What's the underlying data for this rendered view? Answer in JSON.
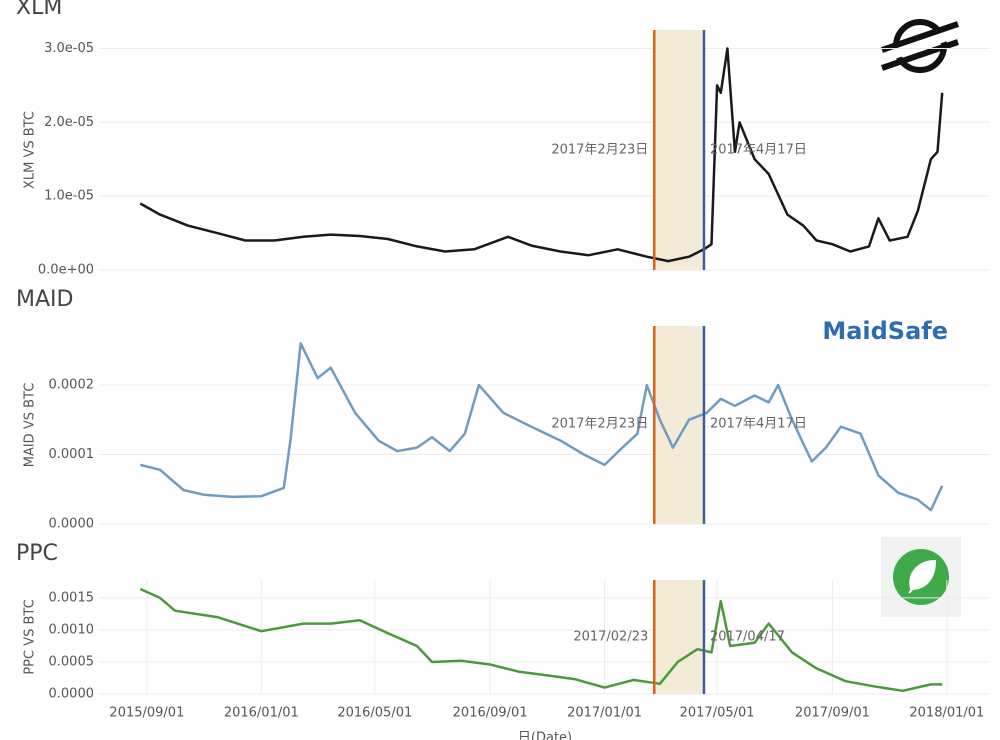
{
  "chart_data": [
    {
      "type": "line",
      "title": "XLM",
      "ylabel": "XLM VS BTC",
      "color": "#1a1a1a",
      "x": [
        "2015/08/25",
        "2015/09/15",
        "2015/10/15",
        "2015/11/15",
        "2015/12/15",
        "2016/01/15",
        "2016/02/15",
        "2016/03/15",
        "2016/04/15",
        "2016/05/15",
        "2016/06/15",
        "2016/07/15",
        "2016/08/15",
        "2016/09/20",
        "2016/10/15",
        "2016/11/15",
        "2016/12/15",
        "2017/01/15",
        "2017/02/15",
        "2017/03/10",
        "2017/04/01",
        "2017/04/17",
        "2017/04/25",
        "2017/05/01",
        "2017/05/05",
        "2017/05/12",
        "2017/05/20",
        "2017/05/25",
        "2017/06/10",
        "2017/06/25",
        "2017/07/15",
        "2017/08/01",
        "2017/08/15",
        "2017/09/01",
        "2017/09/20",
        "2017/10/10",
        "2017/10/20",
        "2017/11/01",
        "2017/11/20",
        "2017/12/01",
        "2017/12/15",
        "2017/12/22",
        "2017/12/27"
      ],
      "values": [
        9e-06,
        7.5e-06,
        6e-06,
        5e-06,
        4e-06,
        4e-06,
        4.5e-06,
        4.8e-06,
        4.6e-06,
        4.2e-06,
        3.2e-06,
        2.5e-06,
        2.8e-06,
        4.5e-06,
        3.3e-06,
        2.5e-06,
        2e-06,
        2.8e-06,
        1.8e-06,
        1.2e-06,
        1.8e-06,
        2.8e-06,
        3.5e-06,
        2.5e-05,
        2.4e-05,
        3e-05,
        1.6e-05,
        2e-05,
        1.5e-05,
        1.3e-05,
        7.5e-06,
        6e-06,
        4e-06,
        3.5e-06,
        2.5e-06,
        3.2e-06,
        7e-06,
        4e-06,
        4.5e-06,
        8e-06,
        1.5e-05,
        1.6e-05,
        2.4e-05
      ],
      "xlim": [
        "2015/07/13",
        "2018/02/16"
      ],
      "ylim": [
        0,
        3.25e-05
      ],
      "yticks": [
        {
          "value": 0,
          "label": "0.0e+00"
        },
        {
          "value": 1e-05,
          "label": "1.0e-05"
        },
        {
          "value": 2e-05,
          "label": "2.0e-05"
        },
        {
          "value": 3e-05,
          "label": "3.0e-05"
        }
      ],
      "grid": true,
      "annotations": [
        {
          "date": "2017/02/23",
          "label": "2017年2月23日",
          "color": "#e0601c"
        },
        {
          "date": "2017/04/17",
          "label": "2017年4月17日",
          "color": "#3a5ca0"
        }
      ],
      "band_color": "#f3ead8"
    },
    {
      "type": "line",
      "title": "MAID",
      "ylabel": "MAID VS BTC",
      "color": "#6f9cc2",
      "logo": "MaidSafe",
      "x": [
        "2015/08/25",
        "2015/09/15",
        "2015/10/10",
        "2015/11/01",
        "2015/12/01",
        "2016/01/01",
        "2016/01/25",
        "2016/02/01",
        "2016/02/12",
        "2016/03/01",
        "2016/03/15",
        "2016/04/10",
        "2016/05/05",
        "2016/05/25",
        "2016/06/15",
        "2016/07/01",
        "2016/07/20",
        "2016/08/05",
        "2016/08/20",
        "2016/09/15",
        "2016/10/15",
        "2016/11/15",
        "2016/12/10",
        "2017/01/01",
        "2017/01/20",
        "2017/02/05",
        "2017/02/15",
        "2017/03/01",
        "2017/03/15",
        "2017/04/01",
        "2017/04/20",
        "2017/05/05",
        "2017/05/20",
        "2017/06/10",
        "2017/06/25",
        "2017/07/05",
        "2017/07/20",
        "2017/08/10",
        "2017/08/25",
        "2017/09/10",
        "2017/10/01",
        "2017/10/20",
        "2017/11/10",
        "2017/12/01",
        "2017/12/15",
        "2017/12/27"
      ],
      "values": [
        8.5e-05,
        7.8e-05,
        4.9e-05,
        4.2e-05,
        3.9e-05,
        4e-05,
        5.2e-05,
        0.00012,
        0.00026,
        0.00021,
        0.000225,
        0.00016,
        0.00012,
        0.000105,
        0.00011,
        0.000125,
        0.000105,
        0.00013,
        0.0002,
        0.00016,
        0.00014,
        0.00012,
        0.0001,
        8.5e-05,
        0.00011,
        0.00013,
        0.0002,
        0.00015,
        0.00011,
        0.00015,
        0.00016,
        0.00018,
        0.00017,
        0.000185,
        0.000175,
        0.0002,
        0.00015,
        9e-05,
        0.00011,
        0.00014,
        0.00013,
        7e-05,
        4.5e-05,
        3.5e-05,
        2e-05,
        5.5e-05
      ],
      "xlim": [
        "2015/07/13",
        "2018/02/16"
      ],
      "ylim": [
        0,
        0.000285
      ],
      "yticks": [
        {
          "value": 0,
          "label": "0.0000"
        },
        0.0001,
        0.0002
      ],
      "grid": true,
      "annotations": [
        {
          "date": "2017/02/23",
          "label": "2017年2月23日",
          "color": "#e0601c"
        },
        {
          "date": "2017/04/17",
          "label": "2017年4月17日",
          "color": "#3a5ca0"
        }
      ],
      "band_color": "#f3ead8"
    },
    {
      "type": "line",
      "title": "PPC",
      "ylabel": "PPC VS BTC",
      "xlabel": "日(Date)",
      "color": "#4a9a3c",
      "x": [
        "2015/08/25",
        "2015/09/15",
        "2015/10/01",
        "2015/11/15",
        "2016/01/01",
        "2016/02/15",
        "2016/03/15",
        "2016/04/15",
        "2016/05/15",
        "2016/06/15",
        "2016/07/01",
        "2016/08/01",
        "2016/09/01",
        "2016/10/01",
        "2016/11/01",
        "2016/12/01",
        "2017/01/01",
        "2017/02/01",
        "2017/03/01",
        "2017/03/20",
        "2017/04/10",
        "2017/04/25",
        "2017/05/05",
        "2017/05/15",
        "2017/06/10",
        "2017/06/25",
        "2017/07/20",
        "2017/08/15",
        "2017/09/15",
        "2017/10/15",
        "2017/11/15",
        "2017/12/15",
        "2017/12/27"
      ],
      "values": [
        0.00164,
        0.0015,
        0.0013,
        0.0012,
        0.00098,
        0.0011,
        0.0011,
        0.00115,
        0.00095,
        0.00075,
        0.0005,
        0.00052,
        0.00046,
        0.00035,
        0.00029,
        0.00023,
        0.0001,
        0.00022,
        0.00016,
        0.0005,
        0.0007,
        0.00065,
        0.00145,
        0.00075,
        0.0008,
        0.0011,
        0.00065,
        0.0004,
        0.0002,
        0.00012,
        5e-05,
        0.00015,
        0.00015
      ],
      "xlim": [
        "2015/07/13",
        "2018/02/16"
      ],
      "ylim": [
        0,
        0.00178
      ],
      "yticks": [
        {
          "value": 0,
          "label": "0.0000"
        },
        {
          "value": 0.0005,
          "label": "0.0005"
        },
        {
          "value": 0.001,
          "label": "0.0010"
        },
        0.0015
      ],
      "xticks": [
        "2015/09/01",
        "2016/01/01",
        "2016/05/01",
        "2016/09/01",
        "2017/01/01",
        "2017/05/01",
        "2017/09/01",
        "2018/01/01"
      ],
      "grid": true,
      "annotations": [
        {
          "date": "2017/02/23",
          "label": "2017/02/23",
          "color": "#e0601c"
        },
        {
          "date": "2017/04/17",
          "label": "2017/04/17",
          "color": "#3a5ca0"
        }
      ],
      "band_color": "#f3ead8"
    }
  ]
}
